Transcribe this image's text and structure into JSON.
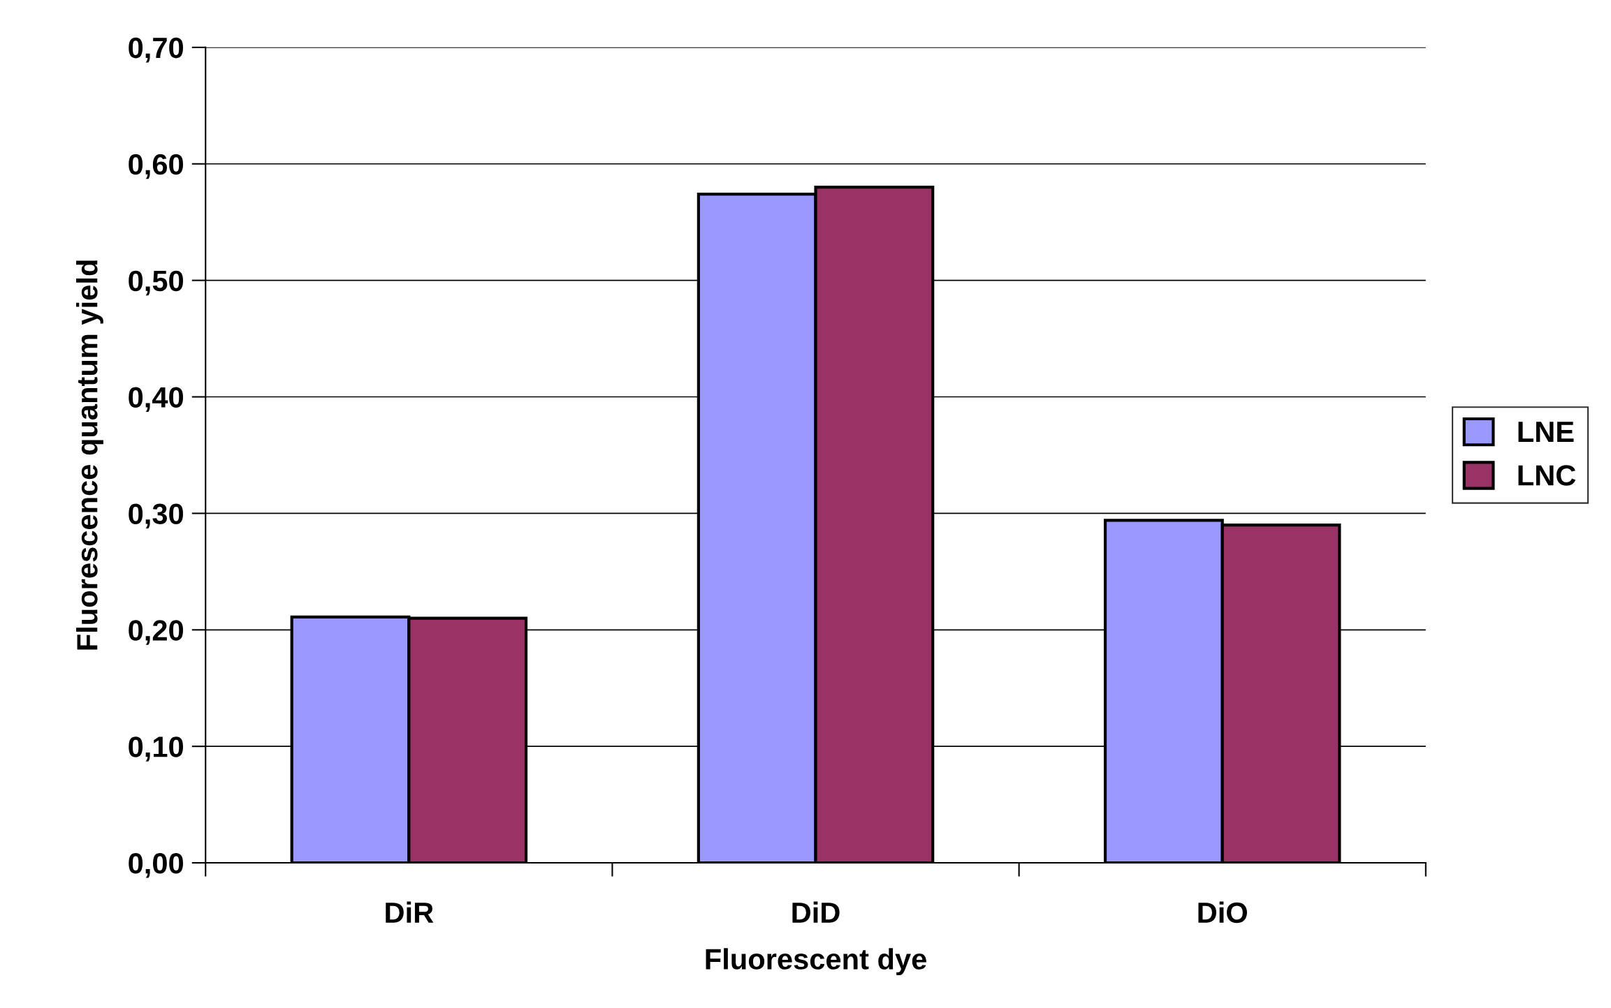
{
  "chart_data": {
    "type": "bar",
    "xlabel": "Fluorescent dye",
    "ylabel": "Fluorescence quantum yield",
    "categories": [
      "DiR",
      "DiD",
      "DiO"
    ],
    "series": [
      {
        "name": "LNE",
        "color": "#9999ff",
        "values": [
          0.211,
          0.574,
          0.294
        ]
      },
      {
        "name": "LNC",
        "color": "#993366",
        "values": [
          0.21,
          0.58,
          0.29
        ]
      }
    ],
    "ylim": [
      0,
      0.7
    ],
    "yticks": [
      {
        "value": 0,
        "label": "0,00"
      },
      {
        "value": 0.1,
        "label": "0,10"
      },
      {
        "value": 0.2,
        "label": "0,20"
      },
      {
        "value": 0.3,
        "label": "0,30"
      },
      {
        "value": 0.4,
        "label": "0,40"
      },
      {
        "value": 0.5,
        "label": "0,50"
      },
      {
        "value": 0.6,
        "label": "0,60"
      },
      {
        "value": 0.7,
        "label": "0,70"
      }
    ],
    "grid": "y",
    "legend": "right"
  }
}
